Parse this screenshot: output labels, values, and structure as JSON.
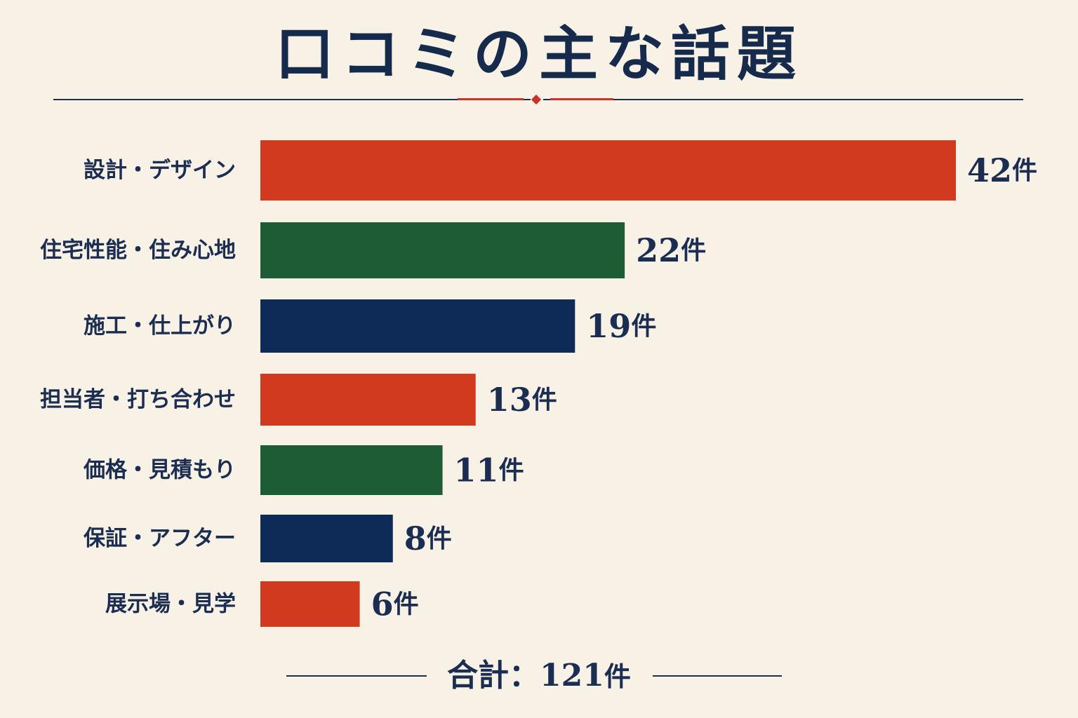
{
  "title": "口コミの主な話題",
  "colors": {
    "background": "#f8f1e6",
    "navy": "#0e2a56",
    "red": "#d23a20",
    "green": "#1d5c35",
    "text": "#1b2d50"
  },
  "total": {
    "label": "合計：",
    "value": "121",
    "unit": "件"
  },
  "chart_data": {
    "type": "bar",
    "orientation": "horizontal",
    "title": "口コミの主な話題",
    "categories": [
      "設計・デザイン",
      "住宅性能・住み心地",
      "施工・仕上がり",
      "担当者・打ち合わせ",
      "価格・見積もり",
      "保証・アフター",
      "展示場・見学"
    ],
    "values": [
      42,
      22,
      19,
      13,
      11,
      8,
      6
    ],
    "value_labels": [
      "42件",
      "22件",
      "19件",
      "13件",
      "11件",
      "8件",
      "6件"
    ],
    "unit": "件",
    "bar_colors": [
      "#d23a20",
      "#1d5c35",
      "#0e2a56",
      "#d23a20",
      "#1d5c35",
      "#0e2a56",
      "#d23a20"
    ],
    "xlim": [
      0,
      42
    ],
    "grid": false,
    "legend": "none"
  }
}
